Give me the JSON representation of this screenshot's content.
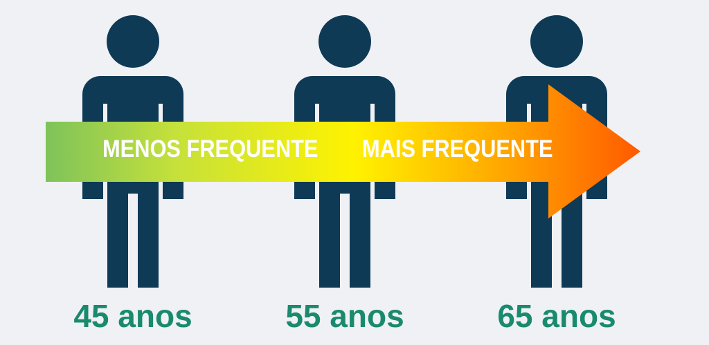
{
  "colors": {
    "background": "#f0f1f5",
    "figure": "#0e3a56",
    "age_text": "#1a8a6e",
    "arrow_start": "#7ec35a",
    "arrow_mid": "#fff200",
    "arrow_end": "#ff5a00",
    "arrow_text": "#ffffff"
  },
  "arrow": {
    "left_text": "MENOS FREQUENTE",
    "right_text": "MAIS FREQUENTE"
  },
  "people": [
    {
      "icon": "person-icon",
      "age": "45 anos"
    },
    {
      "icon": "person-icon",
      "age": "55 anos"
    },
    {
      "icon": "person-icon",
      "age": "65 anos"
    }
  ]
}
